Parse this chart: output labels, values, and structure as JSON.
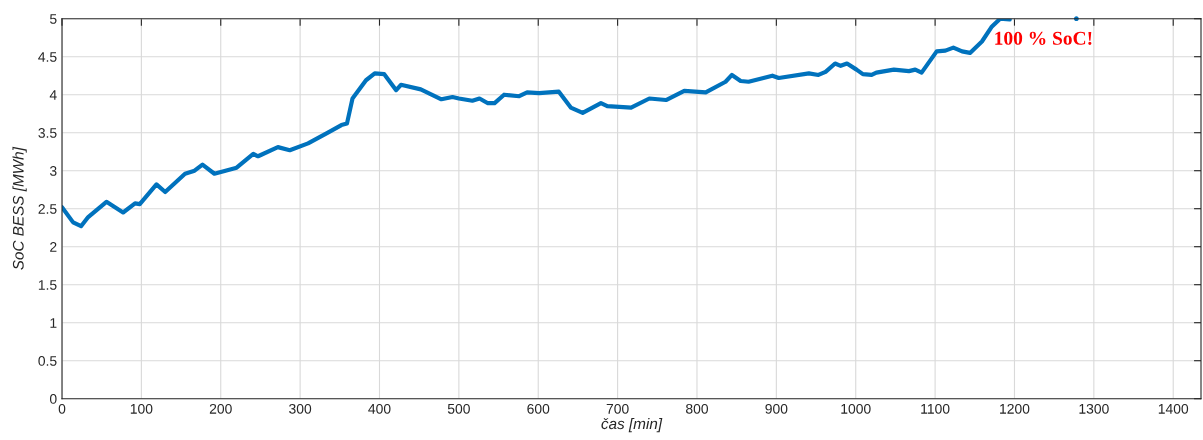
{
  "chart_data": {
    "type": "line",
    "xlabel": "čas [min]",
    "ylabel": "SoC BESS [MWh]",
    "xlim": [
      0,
      1435
    ],
    "ylim": [
      0,
      5
    ],
    "xticks": [
      0,
      100,
      200,
      300,
      400,
      500,
      600,
      700,
      800,
      900,
      1000,
      1100,
      1200,
      1300,
      1400
    ],
    "yticks": [
      0,
      {
        "value": 0.5,
        "label": "0.5"
      },
      1,
      {
        "value": 1.5,
        "label": "1.5"
      },
      2,
      {
        "value": 2.5,
        "label": "2.5"
      },
      3,
      {
        "value": 3.5,
        "label": "3.5"
      },
      4,
      {
        "value": 4.5,
        "label": "4.5"
      },
      5
    ],
    "grid": true,
    "annotations": [
      "100 % SoC!"
    ],
    "series": [
      {
        "color": "#0072bd",
        "x": [
          0,
          14,
          24,
          33,
          56,
          77,
          92,
          98,
          119,
          130,
          155,
          167,
          177,
          192,
          220,
          241,
          247,
          272,
          287,
          310,
          335,
          352,
          359,
          366,
          383,
          394,
          406,
          421,
          427,
          452,
          478,
          492,
          500,
          517,
          526,
          536,
          545,
          557,
          576,
          586,
          601,
          626,
          641,
          656,
          679,
          687,
          717,
          740,
          761,
          784,
          811,
          836,
          844,
          855,
          865,
          895,
          903,
          941,
          953,
          962,
          974,
          981,
          989,
          1001,
          1009,
          1020,
          1026,
          1048,
          1067,
          1075,
          1083,
          1102,
          1113,
          1123,
          1134,
          1144,
          1159,
          1171,
          1182,
          1194
        ],
        "values": [
          2.52,
          2.32,
          2.27,
          2.39,
          2.59,
          2.45,
          2.57,
          2.56,
          2.82,
          2.72,
          2.96,
          3.0,
          3.08,
          2.96,
          3.04,
          3.22,
          3.19,
          3.31,
          3.27,
          3.36,
          3.5,
          3.6,
          3.62,
          3.95,
          4.19,
          4.28,
          4.27,
          4.06,
          4.13,
          4.07,
          3.94,
          3.97,
          3.95,
          3.92,
          3.95,
          3.89,
          3.89,
          4.0,
          3.98,
          4.03,
          4.02,
          4.04,
          3.83,
          3.76,
          3.89,
          3.85,
          3.83,
          3.95,
          3.93,
          4.05,
          4.03,
          4.17,
          4.26,
          4.18,
          4.17,
          4.25,
          4.22,
          4.28,
          4.26,
          4.3,
          4.41,
          4.38,
          4.41,
          4.33,
          4.27,
          4.26,
          4.29,
          4.33,
          4.31,
          4.33,
          4.29,
          4.57,
          4.58,
          4.62,
          4.57,
          4.55,
          4.7,
          4.89,
          5.0,
          4.99
        ]
      },
      {
        "type": "scatter",
        "color": "#0072bd",
        "x": [
          1278
        ],
        "values": [
          5.0
        ]
      }
    ]
  }
}
